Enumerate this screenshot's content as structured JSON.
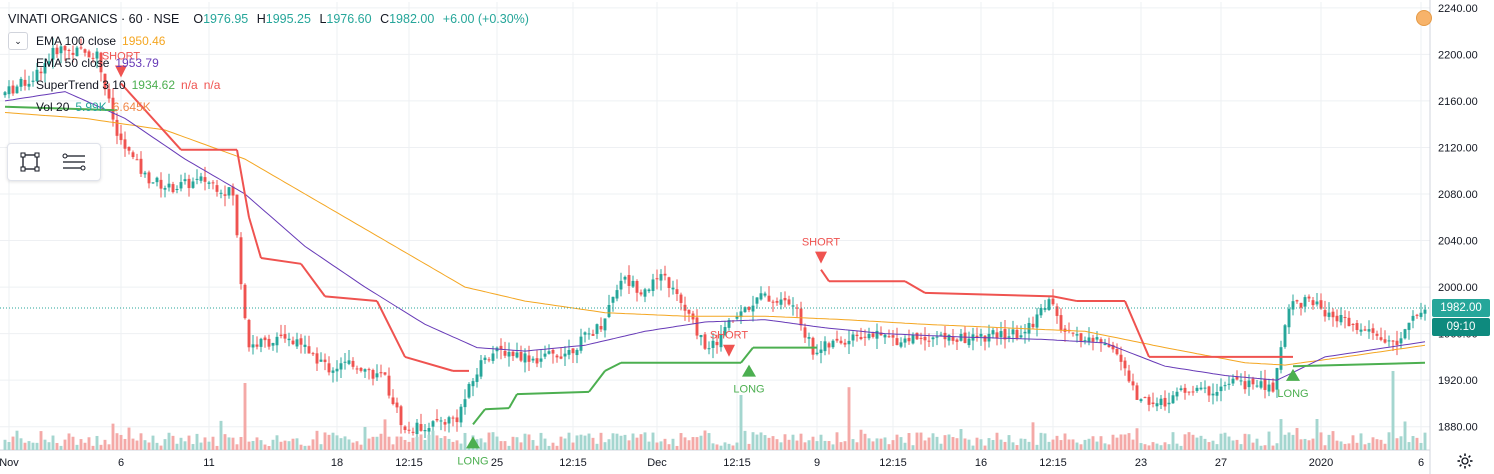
{
  "header": {
    "symbol": "VINATI ORGANICS · 60 · NSE",
    "open_label": "O",
    "open": "1976.95",
    "high_label": "H",
    "high": "1995.25",
    "low_label": "L",
    "low": "1976.60",
    "close_label": "C",
    "close": "1982.00",
    "change": "+6.00 (+0.30%)"
  },
  "indicators": [
    {
      "name": "EMA 100 close",
      "values": [
        "1950.46"
      ],
      "colors": [
        "#f4a621"
      ]
    },
    {
      "name": "EMA 50 close",
      "values": [
        "1953.79"
      ],
      "colors": [
        "#673ab7"
      ]
    },
    {
      "name": "SuperTrend 3 10",
      "values": [
        "1934.62",
        "n/a",
        "n/a"
      ],
      "colors": [
        "#4caf50",
        "#ef5350",
        "#ef5350"
      ]
    },
    {
      "name": "Vol 20",
      "values": [
        "5.99K",
        "6.645K"
      ],
      "colors": [
        "#26a69a",
        "#f0894a"
      ]
    }
  ],
  "price_axis": {
    "last_price": "1982.00",
    "countdown": "09:10",
    "last_price_color": "#26a69a",
    "countdown_color": "#0e8a7e"
  },
  "colors": {
    "up": "#26a69a",
    "down": "#ef5350",
    "vol_up": "#a4d6cf",
    "vol_down": "#f4a9a7",
    "ema100": "#f4a621",
    "ema50": "#673ab7",
    "st_up": "#4caf50",
    "st_down": "#ef5350",
    "grid": "#eef0f3",
    "axis_text": "#131722"
  },
  "icons": [
    "chevron-down-icon",
    "rectangle-tool-icon",
    "lines-tool-icon",
    "alert-icon",
    "gear-icon"
  ],
  "chart_data": {
    "type": "candlestick",
    "title": "VINATI ORGANICS",
    "interval": "60",
    "exchange": "NSE",
    "ylim": [
      1860,
      2245
    ],
    "y_ticks": [
      1880,
      1920,
      1960,
      2000,
      2040,
      2080,
      2120,
      2160,
      2200,
      2240
    ],
    "y_tick_labels": [
      "1880.00",
      "1920.00",
      "1960.00",
      "2000.00",
      "2040.00",
      "2080.00",
      "2120.00",
      "2160.00",
      "2200.00",
      "2240.00"
    ],
    "x_tick_labels": [
      "Nov",
      "6",
      "11",
      "18",
      "12:15",
      "25",
      "12:15",
      "Dec",
      "12:15",
      "9",
      "12:15",
      "16",
      "12:15",
      "23",
      "27",
      "2020",
      "6"
    ],
    "x_tick_index": [
      1,
      29,
      51,
      83,
      101,
      123,
      142,
      163,
      183,
      203,
      222,
      244,
      262,
      284,
      304,
      329,
      354
    ],
    "bars": 356,
    "anchors": [
      [
        0,
        2165
      ],
      [
        8,
        2180
      ],
      [
        14,
        2205
      ],
      [
        24,
        2200
      ],
      [
        29,
        2130
      ],
      [
        36,
        2095
      ],
      [
        42,
        2085
      ],
      [
        51,
        2092
      ],
      [
        58,
        2080
      ],
      [
        60,
        2005
      ],
      [
        62,
        1950
      ],
      [
        70,
        1955
      ],
      [
        76,
        1948
      ],
      [
        82,
        1930
      ],
      [
        88,
        1935
      ],
      [
        96,
        1920
      ],
      [
        101,
        1876
      ],
      [
        107,
        1882
      ],
      [
        114,
        1888
      ],
      [
        117,
        1912
      ],
      [
        121,
        1942
      ],
      [
        126,
        1945
      ],
      [
        134,
        1938
      ],
      [
        142,
        1945
      ],
      [
        150,
        1968
      ],
      [
        155,
        2008
      ],
      [
        160,
        1998
      ],
      [
        166,
        2008
      ],
      [
        171,
        1980
      ],
      [
        177,
        1945
      ],
      [
        183,
        1972
      ],
      [
        190,
        1992
      ],
      [
        198,
        1985
      ],
      [
        203,
        1945
      ],
      [
        209,
        1952
      ],
      [
        216,
        1960
      ],
      [
        224,
        1955
      ],
      [
        232,
        1958
      ],
      [
        240,
        1955
      ],
      [
        248,
        1958
      ],
      [
        256,
        1960
      ],
      [
        262,
        1990
      ],
      [
        266,
        1958
      ],
      [
        272,
        1955
      ],
      [
        278,
        1950
      ],
      [
        284,
        1905
      ],
      [
        290,
        1900
      ],
      [
        296,
        1912
      ],
      [
        302,
        1910
      ],
      [
        308,
        1918
      ],
      [
        314,
        1916
      ],
      [
        318,
        1912
      ],
      [
        322,
        1985
      ],
      [
        326,
        1988
      ],
      [
        332,
        1978
      ],
      [
        338,
        1965
      ],
      [
        344,
        1958
      ],
      [
        349,
        1950
      ],
      [
        353,
        1975
      ],
      [
        355,
        1982
      ]
    ],
    "supertrend": [
      [
        0,
        2155,
        "up"
      ],
      [
        28,
        2152,
        "up"
      ],
      [
        29,
        2175,
        "down"
      ],
      [
        44,
        2118,
        "down"
      ],
      [
        58,
        2118,
        "down"
      ],
      [
        61,
        2060,
        "down"
      ],
      [
        64,
        2025,
        "down"
      ],
      [
        74,
        2020,
        "down"
      ],
      [
        80,
        1992,
        "down"
      ],
      [
        93,
        1988,
        "down"
      ],
      [
        100,
        1940,
        "down"
      ],
      [
        112,
        1928,
        "down"
      ],
      [
        116,
        1928,
        "down"
      ],
      [
        117,
        1882,
        "up"
      ],
      [
        120,
        1895,
        "up"
      ],
      [
        126,
        1896,
        "up"
      ],
      [
        128,
        1908,
        "up"
      ],
      [
        146,
        1910,
        "up"
      ],
      [
        150,
        1928,
        "up"
      ],
      [
        154,
        1935,
        "up"
      ],
      [
        178,
        1935,
        "up"
      ],
      [
        184,
        1935,
        "up"
      ],
      [
        187,
        1948,
        "up"
      ],
      [
        203,
        1948,
        "up"
      ],
      [
        204,
        2015,
        "down"
      ],
      [
        206,
        2005,
        "down"
      ],
      [
        225,
        2005,
        "down"
      ],
      [
        230,
        1995,
        "down"
      ],
      [
        262,
        1992,
        "down"
      ],
      [
        268,
        1988,
        "down"
      ],
      [
        280,
        1988,
        "down"
      ],
      [
        286,
        1940,
        "down"
      ],
      [
        322,
        1940,
        "down"
      ],
      [
        322,
        1932,
        "up"
      ],
      [
        355,
        1935,
        "up"
      ]
    ],
    "ema100": [
      [
        0,
        2150
      ],
      [
        20,
        2145
      ],
      [
        40,
        2135
      ],
      [
        60,
        2110
      ],
      [
        80,
        2070
      ],
      [
        100,
        2030
      ],
      [
        115,
        2000
      ],
      [
        130,
        1988
      ],
      [
        150,
        1978
      ],
      [
        170,
        1975
      ],
      [
        190,
        1975
      ],
      [
        210,
        1972
      ],
      [
        230,
        1968
      ],
      [
        250,
        1965
      ],
      [
        270,
        1962
      ],
      [
        290,
        1948
      ],
      [
        310,
        1935
      ],
      [
        320,
        1933
      ],
      [
        335,
        1940
      ],
      [
        355,
        1950
      ]
    ],
    "ema50": [
      [
        0,
        2160
      ],
      [
        15,
        2168
      ],
      [
        30,
        2145
      ],
      [
        45,
        2110
      ],
      [
        60,
        2080
      ],
      [
        75,
        2035
      ],
      [
        90,
        2000
      ],
      [
        105,
        1968
      ],
      [
        118,
        1948
      ],
      [
        130,
        1945
      ],
      [
        145,
        1950
      ],
      [
        160,
        1962
      ],
      [
        175,
        1970
      ],
      [
        190,
        1972
      ],
      [
        205,
        1965
      ],
      [
        220,
        1960
      ],
      [
        240,
        1957
      ],
      [
        260,
        1955
      ],
      [
        275,
        1952
      ],
      [
        290,
        1932
      ],
      [
        305,
        1924
      ],
      [
        318,
        1920
      ],
      [
        330,
        1940
      ],
      [
        355,
        1953
      ]
    ],
    "signals": [
      {
        "index": 29,
        "label": "SHORT"
      },
      {
        "index": 117,
        "label": "LONG"
      },
      {
        "index": 181,
        "label": "SHORT"
      },
      {
        "index": 186,
        "label": "LONG"
      },
      {
        "index": 204,
        "label": "SHORT"
      },
      {
        "index": 322,
        "label": "LONG"
      }
    ],
    "volume_spikes": [
      [
        60,
        0.95,
        "down"
      ],
      [
        184,
        0.75,
        "up"
      ],
      [
        211,
        0.88,
        "down"
      ],
      [
        328,
        0.35,
        "up"
      ],
      [
        347,
        1.15,
        "up"
      ]
    ]
  }
}
